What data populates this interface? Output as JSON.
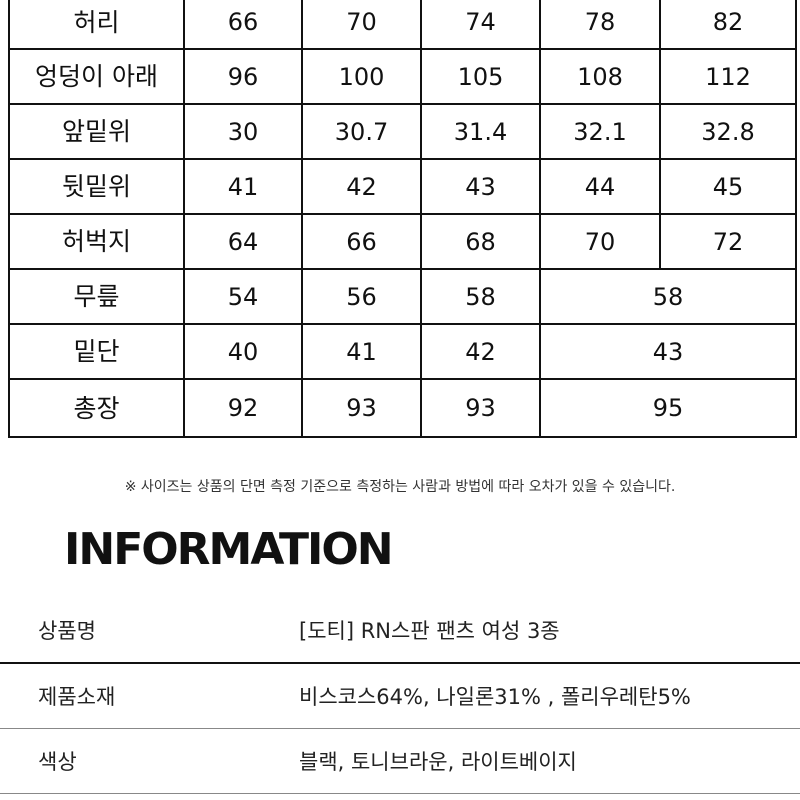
{
  "size_table": {
    "rows": [
      {
        "label": "허리",
        "cells": [
          {
            "v": "66",
            "span": 1
          },
          {
            "v": "70",
            "span": 1
          },
          {
            "v": "74",
            "span": 1
          },
          {
            "v": "78",
            "span": 1
          },
          {
            "v": "82",
            "span": 1
          }
        ]
      },
      {
        "label": "엉덩이 아래",
        "cells": [
          {
            "v": "96",
            "span": 1
          },
          {
            "v": "100",
            "span": 1
          },
          {
            "v": "105",
            "span": 1
          },
          {
            "v": "108",
            "span": 1
          },
          {
            "v": "112",
            "span": 1
          }
        ]
      },
      {
        "label": "앞밑위",
        "cells": [
          {
            "v": "30",
            "span": 1
          },
          {
            "v": "30.7",
            "span": 1
          },
          {
            "v": "31.4",
            "span": 1
          },
          {
            "v": "32.1",
            "span": 1
          },
          {
            "v": "32.8",
            "span": 1
          }
        ]
      },
      {
        "label": "뒷밑위",
        "cells": [
          {
            "v": "41",
            "span": 1
          },
          {
            "v": "42",
            "span": 1
          },
          {
            "v": "43",
            "span": 1
          },
          {
            "v": "44",
            "span": 1
          },
          {
            "v": "45",
            "span": 1
          }
        ]
      },
      {
        "label": "허벅지",
        "cells": [
          {
            "v": "64",
            "span": 1
          },
          {
            "v": "66",
            "span": 1
          },
          {
            "v": "68",
            "span": 1
          },
          {
            "v": "70",
            "span": 1
          },
          {
            "v": "72",
            "span": 1
          }
        ]
      },
      {
        "label": "무릎",
        "cells": [
          {
            "v": "54",
            "span": 1
          },
          {
            "v": "56",
            "span": 1
          },
          {
            "v": "58",
            "span": 1
          },
          {
            "v": "58",
            "span": 2
          }
        ]
      },
      {
        "label": "밑단",
        "cells": [
          {
            "v": "40",
            "span": 1
          },
          {
            "v": "41",
            "span": 1
          },
          {
            "v": "42",
            "span": 1
          },
          {
            "v": "43",
            "span": 2
          }
        ]
      },
      {
        "label": "총장",
        "cells": [
          {
            "v": "92",
            "span": 1
          },
          {
            "v": "93",
            "span": 1
          },
          {
            "v": "93",
            "span": 1
          },
          {
            "v": "95",
            "span": 2
          }
        ]
      }
    ]
  },
  "note": "※ 사이즈는 상품의 단면 측정 기준으로 측정하는 사람과 방법에 따라 오차가 있을 수 있습니다.",
  "information": {
    "title": "INFORMATION",
    "rows": [
      {
        "label": "상품명",
        "value": "[도티] RN스판 팬츠 여성 3종"
      },
      {
        "label": "제품소재",
        "value": "비스코스64%, 나일론31% , 폴리우레탄5%"
      },
      {
        "label": "색상",
        "value": "블랙, 토니브라운, 라이트베이지"
      }
    ]
  }
}
